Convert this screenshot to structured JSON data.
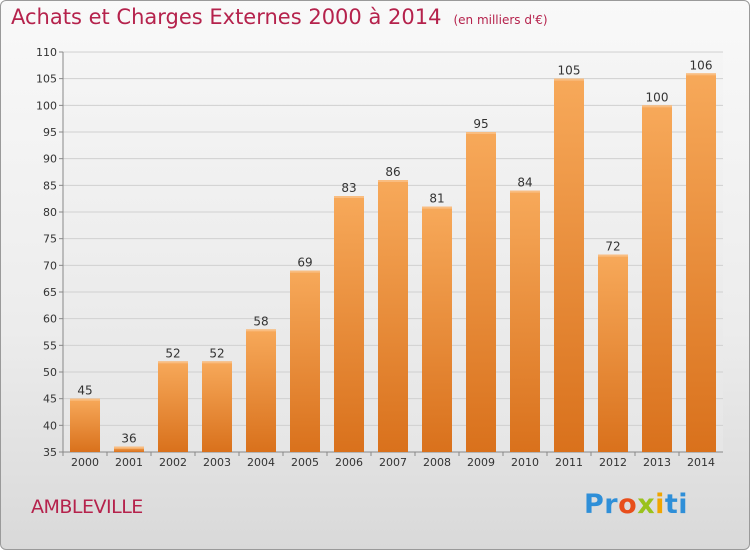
{
  "title": "Achats et Charges Externes 2000 à 2014",
  "subtitle": "(en milliers d'€)",
  "commune": "AMBLEVILLE",
  "logo": {
    "letters": [
      "P",
      "r",
      "o",
      "x",
      "i",
      "t",
      "i"
    ],
    "colors": [
      "#2f8fd8",
      "#2f8fd8",
      "#e84e1b",
      "#9ac21c",
      "#f0a500",
      "#2f8fd8",
      "#2f8fd8"
    ]
  },
  "chart_data": {
    "type": "bar",
    "categories": [
      "2000",
      "2001",
      "2002",
      "2003",
      "2004",
      "2005",
      "2006",
      "2007",
      "2008",
      "2009",
      "2010",
      "2011",
      "2012",
      "2013",
      "2014"
    ],
    "values": [
      45,
      36,
      52,
      52,
      58,
      69,
      83,
      86,
      81,
      95,
      84,
      105,
      72,
      100,
      106
    ],
    "ylim": [
      35,
      110
    ],
    "yticks": [
      35,
      40,
      45,
      50,
      55,
      60,
      65,
      70,
      75,
      80,
      85,
      90,
      95,
      100,
      105,
      110
    ],
    "grid": true,
    "bar_color": "#f08a2c"
  }
}
